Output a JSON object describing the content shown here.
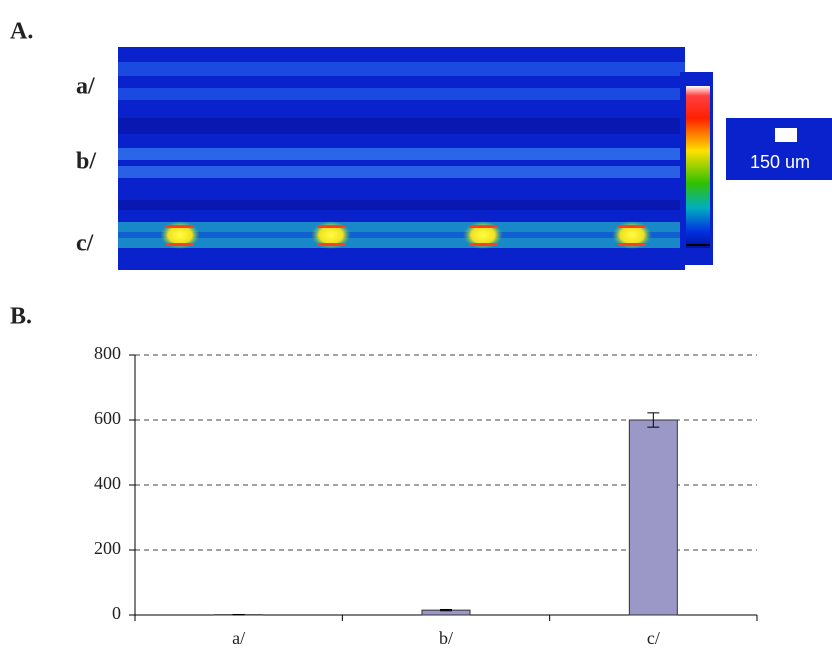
{
  "panel_a": {
    "label": "A.",
    "rows": [
      "a/",
      "b/",
      "c/"
    ],
    "scale_label": "150 um"
  },
  "panel_b": {
    "label": "B."
  },
  "chart_data": {
    "type": "bar",
    "categories": [
      "a/",
      "b/",
      "c/"
    ],
    "values": [
      1,
      15,
      600
    ],
    "errors": [
      0.5,
      2,
      22
    ],
    "color": "#9b98c8",
    "ylim": [
      0,
      800
    ],
    "yticks": [
      0,
      200,
      400,
      600,
      800
    ],
    "grid": true
  }
}
